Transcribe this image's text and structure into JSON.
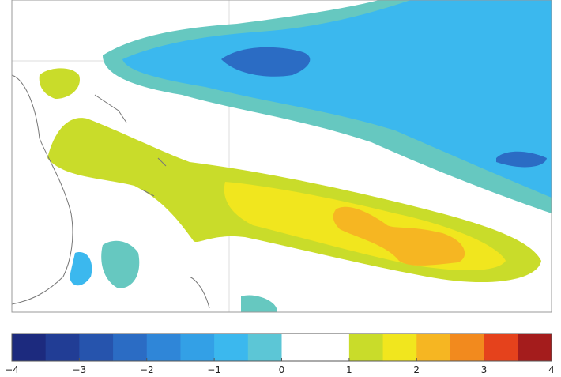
{
  "colorbar": {
    "lim": [
      -4,
      4
    ],
    "ticks": [
      {
        "value": -4,
        "label": "−4"
      },
      {
        "value": -3,
        "label": "−3"
      },
      {
        "value": -2,
        "label": "−2"
      },
      {
        "value": -1,
        "label": "−1"
      },
      0,
      1,
      2,
      3,
      4
    ],
    "colors": [
      "#1c2a7e",
      "#213d95",
      "#2654ad",
      "#2b6cc4",
      "#2f86d8",
      "#33a0e6",
      "#3bb8ee",
      "#5cc6d6",
      "#ffffff",
      "#ffffff",
      "#c9dc2a",
      "#f1e61e",
      "#f6b622",
      "#f28a1e",
      "#e5421c",
      "#a41c1c"
    ]
  }
}
